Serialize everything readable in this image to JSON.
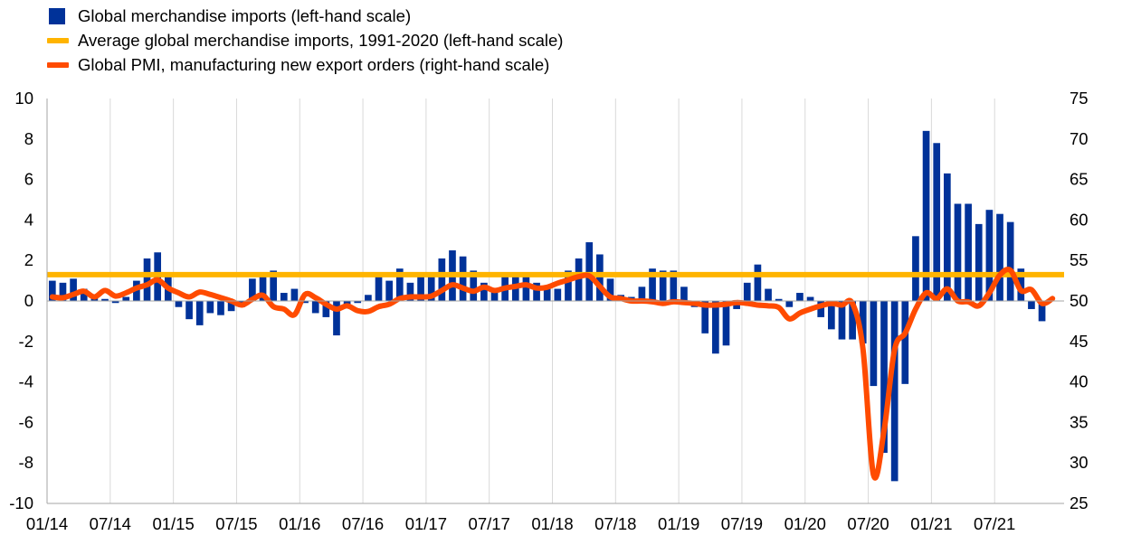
{
  "legend": [
    {
      "label": "Global merchandise imports (left-hand scale)",
      "color": "#003299",
      "kind": "box"
    },
    {
      "label": "Average global merchandise imports, 1991-2020 (left-hand scale)",
      "color": "#FFB400",
      "kind": "line"
    },
    {
      "label": "Global PMI, manufacturing new export orders (right-hand scale)",
      "color": "#FF4B00",
      "kind": "line"
    }
  ],
  "chart_data": {
    "type": "bar",
    "x_tick_labels": [
      "01/14",
      "07/14",
      "01/15",
      "07/15",
      "01/16",
      "07/16",
      "01/17",
      "07/17",
      "01/18",
      "07/18",
      "01/19",
      "07/19",
      "01/20",
      "07/20",
      "01/21",
      "07/21"
    ],
    "y_left": {
      "min": -10,
      "max": 10,
      "ticks": [
        10,
        8,
        6,
        4,
        2,
        0,
        -2,
        -4,
        -6,
        -8,
        -10
      ]
    },
    "y_right": {
      "min": 25,
      "max": 75,
      "ticks": [
        75,
        70,
        65,
        60,
        55,
        50,
        45,
        40,
        35,
        30,
        25
      ]
    },
    "grid": "vertical",
    "legend_position": "top-left",
    "bar_series": {
      "name": "Global merchandise imports (left-hand scale)",
      "color": "#003299",
      "start": "01/14",
      "values": [
        1.0,
        0.9,
        1.1,
        0.6,
        0.3,
        0.1,
        -0.1,
        0.2,
        1.0,
        2.1,
        2.4,
        1.2,
        -0.3,
        -0.9,
        -1.2,
        -0.6,
        -0.7,
        -0.5,
        -0.3,
        1.1,
        1.2,
        1.5,
        0.4,
        0.6,
        -0.1,
        -0.6,
        -0.8,
        -1.7,
        -0.3,
        -0.1,
        0.3,
        1.2,
        1.0,
        1.6,
        0.9,
        1.2,
        1.2,
        2.1,
        2.5,
        2.2,
        1.5,
        0.9,
        0.6,
        1.2,
        1.2,
        1.2,
        0.9,
        0.6,
        0.6,
        1.5,
        2.1,
        2.9,
        2.3,
        1.1,
        0.3,
        0.2,
        0.7,
        1.6,
        1.5,
        1.5,
        0.7,
        -0.3,
        -1.6,
        -2.6,
        -2.2,
        -0.4,
        0.9,
        1.8,
        0.6,
        0.1,
        -0.3,
        0.4,
        0.2,
        -0.8,
        -1.4,
        -1.9,
        -1.9,
        -2.1,
        -4.2,
        -7.5,
        -8.9,
        -4.1,
        3.2,
        8.4,
        7.8,
        6.3,
        4.8,
        4.8,
        3.8,
        4.5,
        4.3,
        3.9,
        1.6,
        -0.4,
        -1.0
      ]
    },
    "average_line": {
      "name": "Average global merchandise imports, 1991-2020 (left-hand scale)",
      "color": "#FFB400",
      "value": 1.3
    },
    "pmi_series": {
      "name": "Global PMI, manufacturing new export orders (right-hand scale)",
      "color": "#FF4B00",
      "start": "01/14",
      "values": [
        50.5,
        50.4,
        50.8,
        51.2,
        50.5,
        51.3,
        50.6,
        51.0,
        51.6,
        52.0,
        52.6,
        51.6,
        51.0,
        50.5,
        51.1,
        50.8,
        50.4,
        50.0,
        49.5,
        50.2,
        50.7,
        49.3,
        49.0,
        48.3,
        50.8,
        50.4,
        49.6,
        49.0,
        49.4,
        48.8,
        48.7,
        49.3,
        49.6,
        50.3,
        50.5,
        50.5,
        50.6,
        51.3,
        52.0,
        51.6,
        51.2,
        51.7,
        51.3,
        51.6,
        51.8,
        52.0,
        51.6,
        51.7,
        52.2,
        52.6,
        53.0,
        53.1,
        51.8,
        50.5,
        50.3,
        50.0,
        50.0,
        49.9,
        49.7,
        49.9,
        49.8,
        49.7,
        49.5,
        49.5,
        49.6,
        49.8,
        49.7,
        49.5,
        49.4,
        49.2,
        47.8,
        48.5,
        49.0,
        49.4,
        49.7,
        49.5,
        49.7,
        44.0,
        28.5,
        34.0,
        44.0,
        46.0,
        49.0,
        51.0,
        50.3,
        51.5,
        50.0,
        49.9,
        49.4,
        51.0,
        53.2,
        53.8,
        51.3,
        51.4,
        49.7,
        50.3
      ]
    }
  }
}
